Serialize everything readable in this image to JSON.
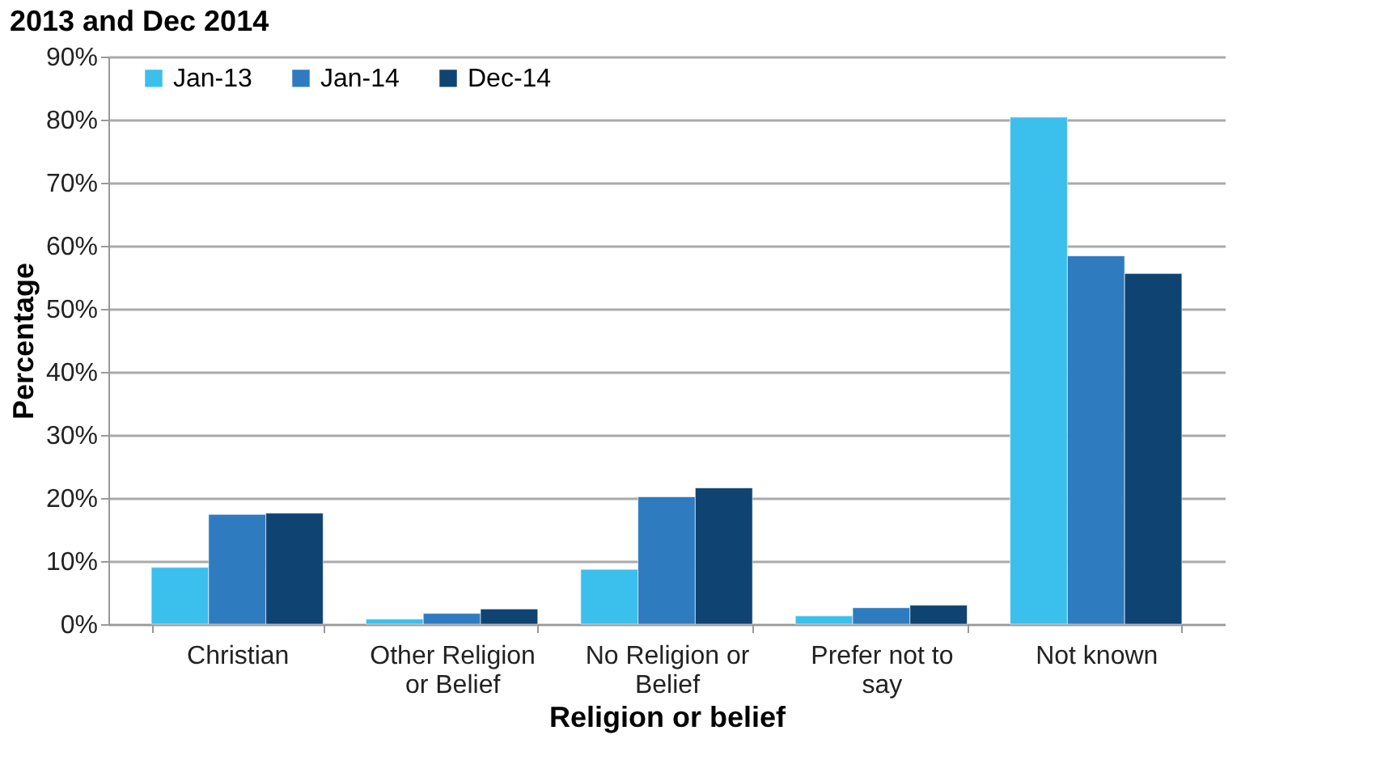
{
  "chart_data": {
    "type": "bar",
    "title": "2013 and Dec 2014",
    "xlabel": "Religion or belief",
    "ylabel": "Percentage",
    "categories": [
      "Christian",
      "Other Religion or Belief",
      "No Religion or Belief",
      "Prefer not to say",
      "Not known"
    ],
    "series": [
      {
        "name": "Jan-13",
        "color": "#3bbfed",
        "values": [
          9.0,
          0.8,
          8.7,
          1.3,
          80.4
        ]
      },
      {
        "name": "Jan-14",
        "color": "#2e7bc0",
        "values": [
          17.4,
          1.7,
          20.2,
          2.6,
          58.4
        ]
      },
      {
        "name": "Dec-14",
        "color": "#0f4472",
        "values": [
          17.6,
          2.4,
          21.6,
          3.0,
          55.6
        ]
      }
    ],
    "ylim": [
      0,
      90
    ],
    "yticks": [
      {
        "value": 0,
        "label": "0%"
      },
      {
        "value": 10,
        "label": "10%"
      },
      {
        "value": 20,
        "label": "20%"
      },
      {
        "value": 30,
        "label": "30%"
      },
      {
        "value": 40,
        "label": "40%"
      },
      {
        "value": 50,
        "label": "50%"
      },
      {
        "value": 60,
        "label": "60%"
      },
      {
        "value": 70,
        "label": "70%"
      },
      {
        "value": 80,
        "label": "80%"
      },
      {
        "value": 90,
        "label": "90%"
      }
    ],
    "grid": "y",
    "legend": "top left"
  }
}
